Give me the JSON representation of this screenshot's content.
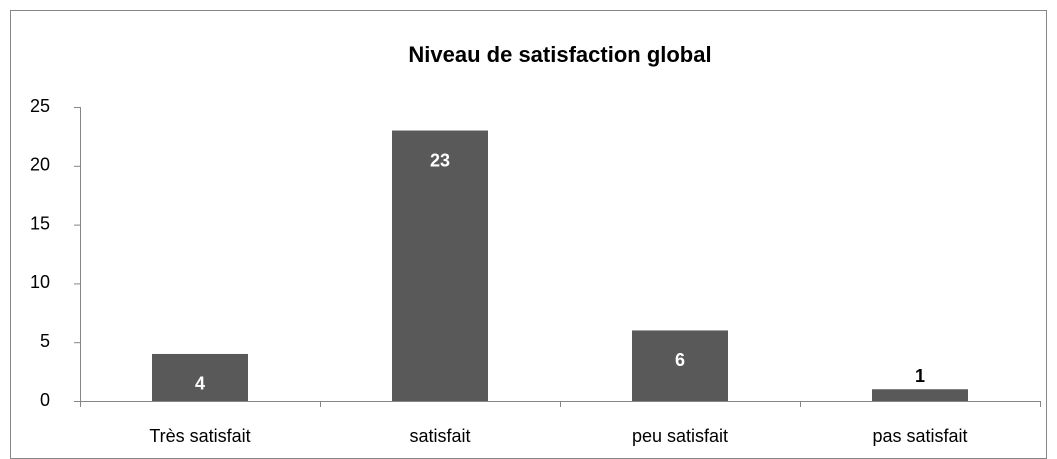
{
  "chart_data": {
    "type": "bar",
    "title": "Niveau de satisfaction global",
    "categories": [
      "Très satisfait",
      "satisfait",
      "peu satisfait",
      "pas satisfait"
    ],
    "values": [
      4,
      23,
      6,
      1
    ],
    "color": "#595959",
    "ylim": [
      0,
      25
    ],
    "yticks": [
      0,
      5,
      10,
      15,
      20,
      25
    ],
    "grid": false
  }
}
